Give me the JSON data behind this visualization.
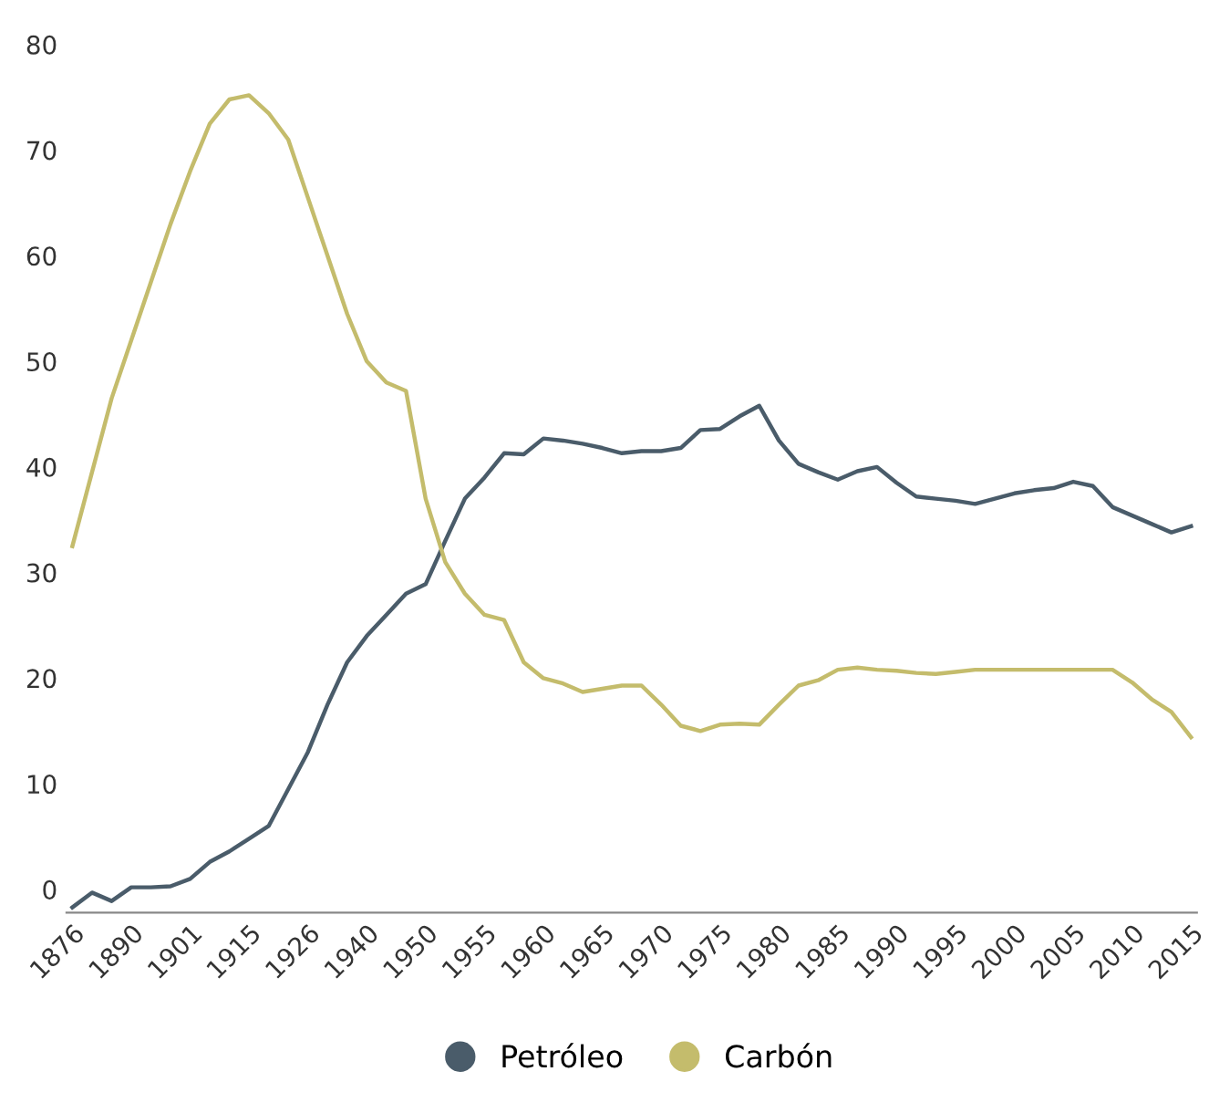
{
  "chart_data": {
    "type": "line",
    "categories": [
      "1876",
      null,
      null,
      "1890",
      null,
      null,
      "1901",
      null,
      null,
      "1915",
      null,
      null,
      "1926",
      null,
      null,
      "1940",
      null,
      null,
      "1950",
      null,
      null,
      "1955",
      null,
      null,
      "1960",
      null,
      null,
      "1965",
      null,
      null,
      "1970",
      null,
      null,
      "1975",
      null,
      null,
      "1980",
      null,
      null,
      "1985",
      null,
      null,
      "1990",
      null,
      null,
      "1995",
      null,
      null,
      "2000",
      null,
      null,
      "2005",
      null,
      null,
      "2010",
      null,
      null,
      "2015"
    ],
    "series": [
      {
        "name": "Petróleo",
        "color": "#4a5c6a",
        "values": [
          -1.7,
          -0.3,
          -1.1,
          0.2,
          0.2,
          0.3,
          1,
          2.6,
          3.6,
          4.8,
          6,
          9.5,
          13,
          17.5,
          21.5,
          24,
          26,
          28,
          28.9,
          33,
          37,
          39,
          41.3,
          41.2,
          42.7,
          42.5,
          42.2,
          41.8,
          41.3,
          41.5,
          41.5,
          41.8,
          43.5,
          43.6,
          44.8,
          45.8,
          42.5,
          40.3,
          39.5,
          38.8,
          39.6,
          40,
          38.5,
          37.2,
          37,
          36.8,
          36.5,
          37,
          37.5,
          37.8,
          38,
          38.6,
          38.2,
          36.2,
          35.4,
          34.6,
          33.8,
          34.4
        ]
      },
      {
        "name": "Carbón",
        "color": "#c4bc6c",
        "values": [
          32.5,
          39.5,
          46.5,
          52,
          57.5,
          63,
          68,
          72.5,
          74.8,
          75.2,
          73.5,
          71,
          65.5,
          60,
          54.5,
          50,
          48,
          47.2,
          37,
          31,
          28,
          26,
          25.5,
          21.5,
          20,
          19.5,
          18.7,
          19,
          19.3,
          19.3,
          17.5,
          15.5,
          15,
          15.6,
          15.7,
          15.6,
          17.5,
          19.3,
          19.8,
          20.8,
          21,
          20.8,
          20.7,
          20.5,
          20.4,
          20.6,
          20.8,
          20.8,
          20.8,
          20.8,
          20.8,
          20.8,
          20.8,
          20.8,
          19.6,
          18,
          16.8,
          14.4
        ]
      }
    ],
    "ylim": [
      -2.2,
      80
    ],
    "yticks": [
      0,
      10,
      20,
      30,
      40,
      50,
      60,
      70,
      80
    ],
    "grid": false,
    "legend": "bottom",
    "marker": "none",
    "line_style": "solid"
  }
}
